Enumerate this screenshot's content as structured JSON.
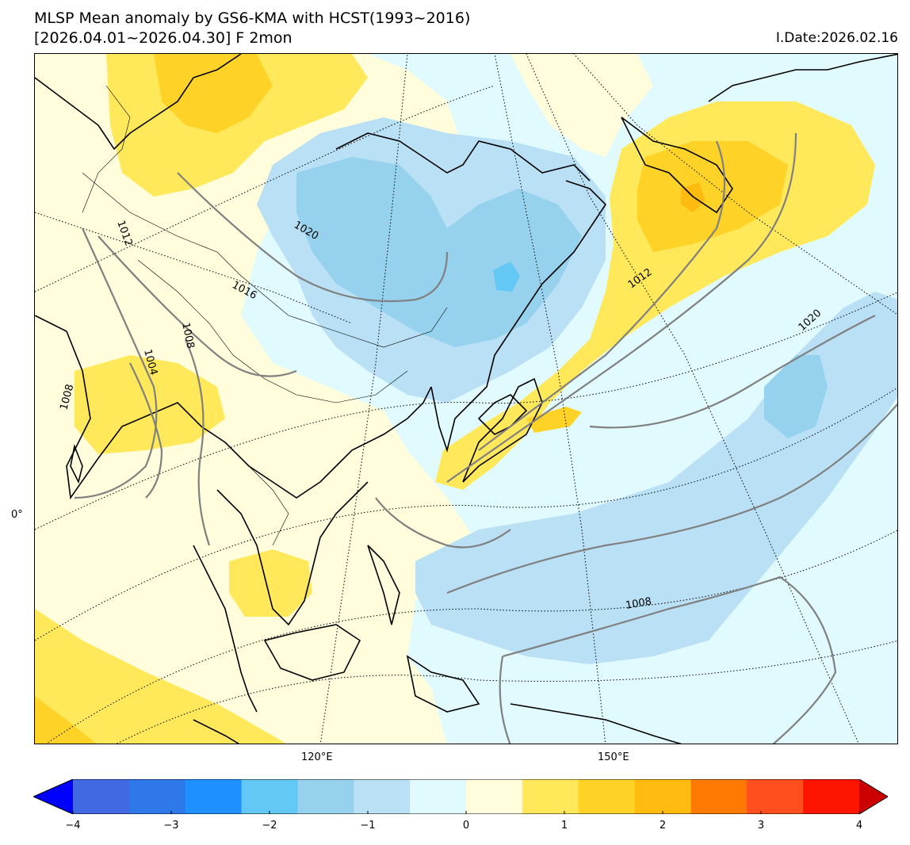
{
  "header": {
    "title_line1": "MLSP Mean anomaly by GS6-KMA with HCST(1993~2016)",
    "title_line2": "[2026.04.01~2026.04.30] F 2mon",
    "issue_date": "I.Date:2026.02.16"
  },
  "axes": {
    "lat_label": "0°",
    "lon_labels": [
      "120°E",
      "150°E"
    ]
  },
  "contours": {
    "unit_hint": "hPa",
    "labels": [
      "1012",
      "1020",
      "1016",
      "1008",
      "1004",
      "1008",
      "1012",
      "1020",
      "1008"
    ]
  },
  "colorbar": {
    "ticks": [
      "−4",
      "−3",
      "−2",
      "−1",
      "0",
      "1",
      "2",
      "3",
      "4"
    ],
    "colors": [
      "#0000ff",
      "#4169e1",
      "#2f78ea",
      "#1e90ff",
      "#64c8f4",
      "#96d2ee",
      "#b9e0f5",
      "#e1fafe",
      "#fffddc",
      "#ffe95a",
      "#ffd228",
      "#ffbb0f",
      "#ff7a00",
      "#ff4f1e",
      "#ff1400",
      "#cc0000"
    ],
    "extend": "both"
  },
  "legend_colors": {
    "land_outline": "#000000",
    "contour": "#808080",
    "graticule": "#000000"
  }
}
